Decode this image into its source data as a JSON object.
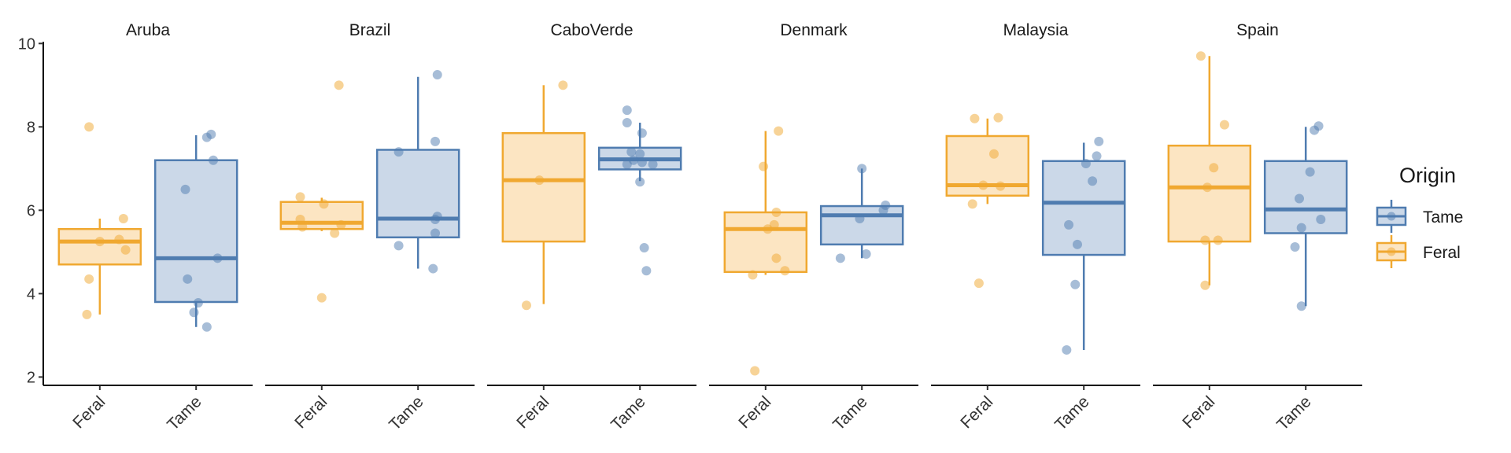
{
  "chart_data": {
    "type": "boxplot",
    "facets": [
      "Aruba",
      "Brazil",
      "CaboVerde",
      "Denmark",
      "Malaysia",
      "Spain"
    ],
    "categories": [
      "Feral",
      "Tame"
    ],
    "y_ticks": [
      2,
      4,
      6,
      8,
      10
    ],
    "ylim": [
      1.8,
      10.1
    ],
    "legend": {
      "title": "Origin",
      "position": "right",
      "entries": [
        {
          "name": "Tame",
          "color": "#4f7cb0"
        },
        {
          "name": "Feral",
          "color": "#f0a830"
        }
      ]
    },
    "colors": {
      "Feral": {
        "stroke": "#f0a830",
        "fill": "#fce5c2"
      },
      "Tame": {
        "stroke": "#4f7cb0",
        "fill": "#cbd8e8"
      }
    },
    "panels": [
      {
        "facet": "Aruba",
        "boxes": [
          {
            "group": "Feral",
            "q1": 4.7,
            "median": 5.25,
            "q3": 5.55,
            "whisker_low": 3.5,
            "whisker_high": 5.8,
            "points": [
              [
                -0.25,
                8.0
              ],
              [
                0.0,
                5.25
              ],
              [
                -0.25,
                4.35
              ],
              [
                -0.3,
                3.5
              ],
              [
                0.55,
                5.8
              ],
              [
                0.45,
                5.3
              ],
              [
                0.6,
                5.05
              ]
            ]
          },
          {
            "group": "Tame",
            "q1": 3.8,
            "median": 4.85,
            "q3": 7.2,
            "whisker_low": 3.2,
            "whisker_high": 7.8,
            "points": [
              [
                -0.25,
                6.5
              ],
              [
                -0.2,
                4.35
              ],
              [
                0.25,
                7.75
              ],
              [
                0.35,
                7.82
              ],
              [
                0.4,
                7.2
              ],
              [
                0.5,
                4.85
              ],
              [
                0.05,
                3.78
              ],
              [
                -0.05,
                3.55
              ],
              [
                0.25,
                3.2
              ]
            ]
          }
        ]
      },
      {
        "facet": "Brazil",
        "boxes": [
          {
            "group": "Feral",
            "q1": 5.55,
            "median": 5.7,
            "q3": 6.2,
            "whisker_low": 5.5,
            "whisker_high": 6.3,
            "points": [
              [
                -0.5,
                6.32
              ],
              [
                -0.5,
                5.78
              ],
              [
                -0.45,
                5.6
              ],
              [
                0.05,
                6.15
              ],
              [
                0.4,
                9.0
              ],
              [
                0.3,
                5.45
              ],
              [
                0.45,
                5.65
              ],
              [
                -0.0,
                3.9
              ]
            ]
          },
          {
            "group": "Tame",
            "q1": 5.35,
            "median": 5.8,
            "q3": 7.45,
            "whisker_low": 4.6,
            "whisker_high": 9.2,
            "points": [
              [
                -0.45,
                7.4
              ],
              [
                -0.45,
                5.15
              ],
              [
                0.45,
                9.25
              ],
              [
                0.4,
                7.65
              ],
              [
                0.45,
                5.85
              ],
              [
                0.4,
                5.45
              ],
              [
                0.4,
                5.78
              ],
              [
                0.35,
                4.6
              ]
            ]
          }
        ]
      },
      {
        "facet": "CaboVerde",
        "boxes": [
          {
            "group": "Feral",
            "q1": 5.25,
            "median": 6.72,
            "q3": 7.85,
            "whisker_low": 3.75,
            "whisker_high": 9.0,
            "points": [
              [
                -0.1,
                6.72
              ],
              [
                0.45,
                9.0
              ],
              [
                -0.4,
                3.72
              ]
            ]
          },
          {
            "group": "Tame",
            "q1": 6.98,
            "median": 7.22,
            "q3": 7.5,
            "whisker_low": 6.7,
            "whisker_high": 8.1,
            "points": [
              [
                -0.3,
                8.4
              ],
              [
                -0.3,
                8.1
              ],
              [
                -0.2,
                7.4
              ],
              [
                -0.15,
                7.2
              ],
              [
                0.0,
                7.35
              ],
              [
                0.05,
                7.15
              ],
              [
                -0.3,
                7.1
              ],
              [
                0.05,
                7.85
              ],
              [
                0.3,
                7.1
              ],
              [
                0.0,
                6.68
              ],
              [
                0.1,
                5.1
              ],
              [
                0.15,
                4.55
              ]
            ]
          }
        ]
      },
      {
        "facet": "Denmark",
        "boxes": [
          {
            "group": "Feral",
            "q1": 4.52,
            "median": 5.55,
            "q3": 5.95,
            "whisker_low": 4.45,
            "whisker_high": 7.9,
            "points": [
              [
                -0.05,
                7.05
              ],
              [
                0.3,
                7.9
              ],
              [
                0.25,
                5.95
              ],
              [
                0.2,
                5.65
              ],
              [
                0.05,
                5.55
              ],
              [
                0.25,
                4.85
              ],
              [
                0.45,
                4.55
              ],
              [
                -0.3,
                4.45
              ],
              [
                -0.25,
                2.15
              ]
            ]
          },
          {
            "group": "Tame",
            "q1": 5.18,
            "median": 5.88,
            "q3": 6.1,
            "whisker_low": 4.85,
            "whisker_high": 7.0,
            "points": [
              [
                0.0,
                7.0
              ],
              [
                0.55,
                6.12
              ],
              [
                -0.05,
                5.8
              ],
              [
                0.1,
                4.95
              ],
              [
                -0.5,
                4.85
              ],
              [
                0.5,
                6.0
              ]
            ]
          }
        ]
      },
      {
        "facet": "Malaysia",
        "boxes": [
          {
            "group": "Feral",
            "q1": 6.35,
            "median": 6.6,
            "q3": 7.78,
            "whisker_low": 6.15,
            "whisker_high": 8.2,
            "points": [
              [
                -0.3,
                8.2
              ],
              [
                0.25,
                8.22
              ],
              [
                0.15,
                7.35
              ],
              [
                -0.1,
                6.6
              ],
              [
                0.3,
                6.58
              ],
              [
                -0.35,
                6.15
              ],
              [
                -0.2,
                4.25
              ]
            ]
          },
          {
            "group": "Tame",
            "q1": 4.93,
            "median": 6.18,
            "q3": 7.18,
            "whisker_low": 2.65,
            "whisker_high": 7.62,
            "points": [
              [
                0.35,
                7.65
              ],
              [
                0.3,
                7.3
              ],
              [
                0.05,
                7.12
              ],
              [
                0.2,
                6.7
              ],
              [
                -0.35,
                5.65
              ],
              [
                -0.15,
                5.18
              ],
              [
                -0.2,
                4.22
              ],
              [
                -0.4,
                2.65
              ]
            ]
          }
        ]
      },
      {
        "facet": "Spain",
        "boxes": [
          {
            "group": "Feral",
            "q1": 5.25,
            "median": 6.55,
            "q3": 7.55,
            "whisker_low": 4.2,
            "whisker_high": 9.7,
            "points": [
              [
                -0.2,
                9.7
              ],
              [
                0.35,
                8.05
              ],
              [
                0.1,
                7.02
              ],
              [
                -0.05,
                6.55
              ],
              [
                -0.1,
                5.28
              ],
              [
                0.2,
                5.28
              ],
              [
                -0.1,
                4.2
              ]
            ]
          },
          {
            "group": "Tame",
            "q1": 5.45,
            "median": 6.02,
            "q3": 7.18,
            "whisker_low": 3.7,
            "whisker_high": 8.0,
            "points": [
              [
                0.3,
                8.02
              ],
              [
                0.2,
                7.92
              ],
              [
                0.1,
                6.92
              ],
              [
                -0.15,
                6.28
              ],
              [
                -0.1,
                5.58
              ],
              [
                -0.25,
                5.12
              ],
              [
                0.35,
                5.78
              ],
              [
                -0.1,
                3.7
              ]
            ]
          }
        ]
      }
    ]
  }
}
